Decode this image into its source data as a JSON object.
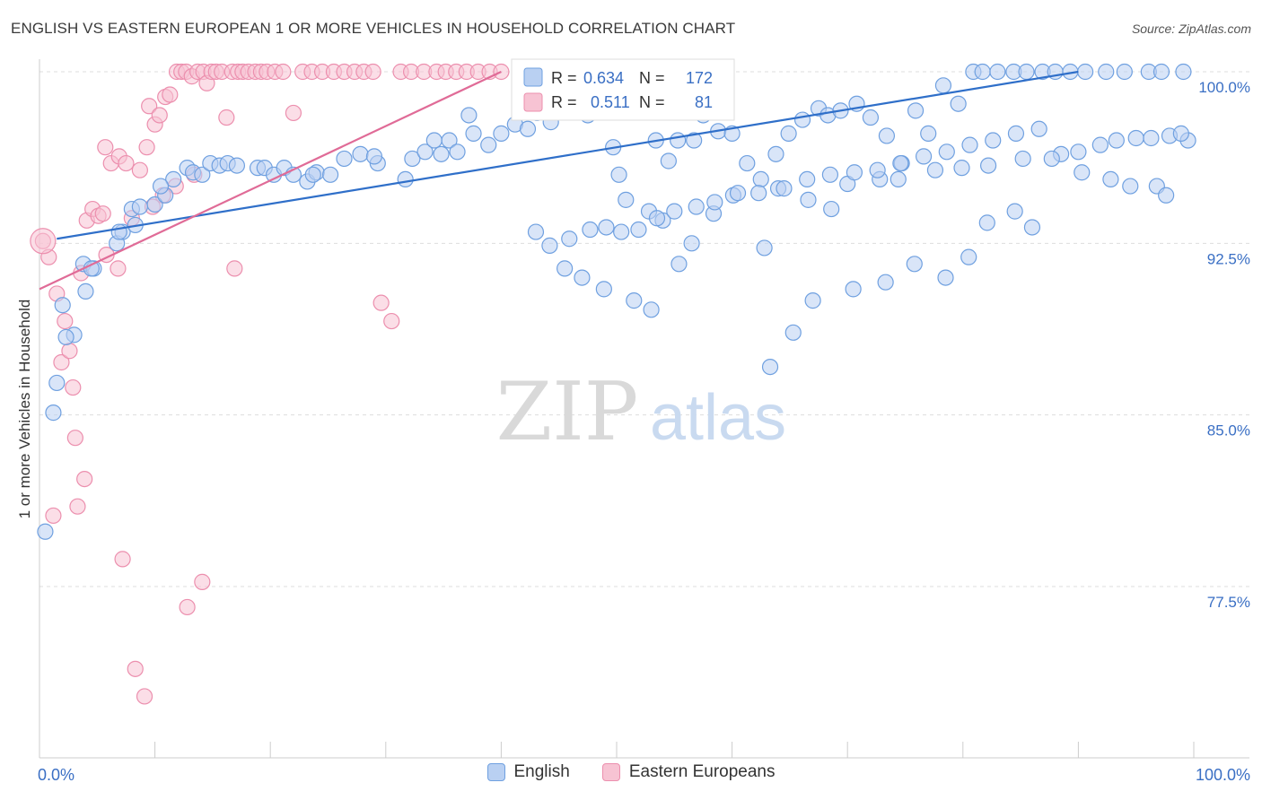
{
  "header": {
    "title": "ENGLISH VS EASTERN EUROPEAN 1 OR MORE VEHICLES IN HOUSEHOLD CORRELATION CHART",
    "source": "Source: ZipAtlas.com"
  },
  "watermark": {
    "zip": "ZIP",
    "atlas": "atlas"
  },
  "colors": {
    "english_fill": "#b9d0f2",
    "english_stroke": "#6fa0e0",
    "english_line": "#2f6fc9",
    "eastern_fill": "#f7c3d3",
    "eastern_stroke": "#ec8fae",
    "eastern_line": "#e06b97",
    "value_text": "#3a6fc4",
    "grid": "#dddddd"
  },
  "legend_box": {
    "r_label": "R =",
    "n_label": "N =",
    "english": {
      "r": "0.634",
      "n": "172"
    },
    "eastern": {
      "r": "0.511",
      "n": "81"
    }
  },
  "legend_bottom": {
    "english": "English",
    "eastern": "Eastern Europeans"
  },
  "chart_data": {
    "type": "scatter",
    "title": "ENGLISH VS EASTERN EUROPEAN 1 OR MORE VEHICLES IN HOUSEHOLD CORRELATION CHART",
    "xlabel": "",
    "ylabel": "1 or more Vehicles in Household",
    "xlim": [
      0,
      100
    ],
    "ylim": [
      71.0,
      101.0
    ],
    "x_tick_labels": [
      "0.0%",
      "100.0%"
    ],
    "y_ticks": [
      {
        "value": 100.0,
        "label": "100.0%"
      },
      {
        "value": 92.5,
        "label": "92.5%"
      },
      {
        "value": 85.0,
        "label": "85.0%"
      },
      {
        "value": 77.5,
        "label": "77.5%"
      }
    ],
    "grid": "horizontal dashed",
    "legend": "top-center and bottom",
    "series": [
      {
        "name": "English",
        "trend": {
          "x": [
            1.5,
            90
          ],
          "y": [
            92.7,
            100.0
          ]
        },
        "points": [
          [
            0.5,
            79.9
          ],
          [
            1.2,
            85.1
          ],
          [
            1.5,
            86.4
          ],
          [
            3.0,
            88.5
          ],
          [
            2.3,
            88.4
          ],
          [
            2.0,
            89.8
          ],
          [
            4.0,
            90.4
          ],
          [
            3.8,
            91.6
          ],
          [
            4.7,
            91.4
          ],
          [
            4.5,
            91.4
          ],
          [
            6.7,
            92.5
          ],
          [
            7.2,
            93.0
          ],
          [
            8.3,
            93.3
          ],
          [
            6.9,
            93.0
          ],
          [
            8.0,
            94.0
          ],
          [
            10.0,
            94.2
          ],
          [
            8.7,
            94.1
          ],
          [
            10.9,
            94.6
          ],
          [
            11.6,
            95.3
          ],
          [
            10.5,
            95.0
          ],
          [
            12.8,
            95.8
          ],
          [
            13.3,
            95.6
          ],
          [
            14.1,
            95.5
          ],
          [
            14.8,
            96.0
          ],
          [
            15.6,
            95.9
          ],
          [
            16.3,
            96.0
          ],
          [
            17.1,
            95.9
          ],
          [
            18.9,
            95.8
          ],
          [
            19.5,
            95.8
          ],
          [
            20.3,
            95.5
          ],
          [
            21.2,
            95.8
          ],
          [
            22.0,
            95.5
          ],
          [
            23.2,
            95.2
          ],
          [
            24.0,
            95.6
          ],
          [
            23.7,
            95.5
          ],
          [
            25.2,
            95.5
          ],
          [
            26.4,
            96.2
          ],
          [
            27.8,
            96.4
          ],
          [
            29.3,
            96.0
          ],
          [
            29.0,
            96.3
          ],
          [
            31.7,
            95.3
          ],
          [
            32.3,
            96.2
          ],
          [
            33.4,
            96.5
          ],
          [
            34.2,
            97.0
          ],
          [
            34.8,
            96.4
          ],
          [
            35.5,
            97.0
          ],
          [
            36.2,
            96.5
          ],
          [
            37.6,
            97.3
          ],
          [
            37.2,
            98.1
          ],
          [
            38.9,
            96.8
          ],
          [
            40.0,
            97.3
          ],
          [
            41.2,
            97.7
          ],
          [
            42.3,
            97.5
          ],
          [
            43.1,
            98.2
          ],
          [
            44.3,
            97.8
          ],
          [
            46.1,
            98.6
          ],
          [
            47.5,
            98.1
          ],
          [
            48.4,
            99.2
          ],
          [
            49.7,
            96.7
          ],
          [
            50.2,
            95.5
          ],
          [
            52.1,
            98.9
          ],
          [
            53.4,
            97.0
          ],
          [
            54.5,
            96.1
          ],
          [
            55.3,
            97.0
          ],
          [
            56.7,
            97.0
          ],
          [
            57.5,
            98.1
          ],
          [
            58.8,
            97.4
          ],
          [
            60.0,
            97.3
          ],
          [
            61.3,
            96.0
          ],
          [
            62.5,
            95.3
          ],
          [
            63.8,
            96.4
          ],
          [
            64.9,
            97.3
          ],
          [
            66.1,
            97.9
          ],
          [
            67.5,
            98.4
          ],
          [
            68.3,
            98.1
          ],
          [
            69.4,
            98.3
          ],
          [
            70.8,
            98.6
          ],
          [
            72.0,
            98.0
          ],
          [
            73.4,
            97.2
          ],
          [
            74.7,
            96.0
          ],
          [
            75.9,
            98.3
          ],
          [
            77.0,
            97.3
          ],
          [
            78.3,
            99.4
          ],
          [
            79.6,
            98.6
          ],
          [
            80.9,
            100.0
          ],
          [
            81.7,
            100.0
          ],
          [
            83.0,
            100.0
          ],
          [
            84.4,
            100.0
          ],
          [
            85.5,
            100.0
          ],
          [
            86.9,
            100.0
          ],
          [
            88.0,
            100.0
          ],
          [
            89.3,
            100.0
          ],
          [
            90.6,
            100.0
          ],
          [
            92.4,
            100.0
          ],
          [
            94.0,
            100.0
          ],
          [
            96.1,
            100.0
          ],
          [
            97.2,
            100.0
          ],
          [
            99.1,
            100.0
          ],
          [
            99.5,
            97.0
          ],
          [
            68.6,
            94.0
          ],
          [
            62.8,
            92.3
          ],
          [
            58.4,
            93.8
          ],
          [
            56.5,
            92.5
          ],
          [
            55.4,
            91.6
          ],
          [
            63.3,
            87.1
          ],
          [
            65.3,
            88.6
          ],
          [
            67.0,
            90.0
          ],
          [
            70.5,
            90.5
          ],
          [
            73.3,
            90.8
          ],
          [
            75.8,
            91.6
          ],
          [
            78.5,
            91.0
          ],
          [
            80.5,
            91.9
          ],
          [
            82.1,
            93.4
          ],
          [
            84.5,
            93.9
          ],
          [
            86.0,
            93.2
          ],
          [
            88.5,
            96.4
          ],
          [
            90.3,
            95.6
          ],
          [
            92.8,
            95.3
          ],
          [
            94.5,
            95.0
          ],
          [
            96.8,
            95.0
          ],
          [
            97.6,
            94.6
          ],
          [
            60.1,
            94.6
          ],
          [
            64.0,
            94.9
          ],
          [
            66.6,
            94.4
          ],
          [
            70.0,
            95.1
          ],
          [
            72.8,
            95.3
          ],
          [
            74.4,
            95.3
          ],
          [
            77.6,
            95.7
          ],
          [
            79.9,
            95.8
          ],
          [
            82.2,
            95.9
          ],
          [
            85.2,
            96.2
          ],
          [
            87.7,
            96.2
          ],
          [
            90.0,
            96.5
          ],
          [
            91.9,
            96.8
          ],
          [
            93.3,
            97.0
          ],
          [
            95.0,
            97.1
          ],
          [
            96.3,
            97.1
          ],
          [
            97.9,
            97.2
          ],
          [
            98.9,
            97.3
          ],
          [
            50.8,
            94.4
          ],
          [
            52.8,
            93.9
          ],
          [
            54.0,
            93.5
          ],
          [
            45.5,
            91.4
          ],
          [
            47.0,
            91.0
          ],
          [
            48.9,
            90.5
          ],
          [
            51.5,
            90.0
          ],
          [
            53.0,
            89.6
          ],
          [
            43.0,
            93.0
          ],
          [
            44.2,
            92.4
          ],
          [
            45.9,
            92.7
          ],
          [
            47.7,
            93.1
          ],
          [
            49.1,
            93.2
          ],
          [
            50.4,
            93.0
          ],
          [
            51.9,
            93.1
          ],
          [
            53.5,
            93.6
          ],
          [
            55.0,
            93.9
          ],
          [
            56.9,
            94.1
          ],
          [
            58.5,
            94.3
          ],
          [
            60.5,
            94.7
          ],
          [
            62.3,
            94.7
          ],
          [
            64.5,
            94.9
          ],
          [
            66.5,
            95.3
          ],
          [
            68.5,
            95.5
          ],
          [
            70.6,
            95.6
          ],
          [
            72.6,
            95.7
          ],
          [
            74.6,
            96.0
          ],
          [
            76.6,
            96.3
          ],
          [
            78.6,
            96.5
          ],
          [
            80.6,
            96.8
          ],
          [
            82.6,
            97.0
          ],
          [
            84.6,
            97.3
          ],
          [
            86.6,
            97.5
          ]
        ]
      },
      {
        "name": "Eastern Europeans",
        "trend": {
          "x": [
            0,
            40
          ],
          "y": [
            90.5,
            100.0
          ]
        },
        "points": [
          [
            0.3,
            92.6
          ],
          [
            0.8,
            91.9
          ],
          [
            1.2,
            80.6
          ],
          [
            1.5,
            90.3
          ],
          [
            1.9,
            87.3
          ],
          [
            2.2,
            89.1
          ],
          [
            2.6,
            87.8
          ],
          [
            2.9,
            86.2
          ],
          [
            3.1,
            84.0
          ],
          [
            3.3,
            81.0
          ],
          [
            3.6,
            91.2
          ],
          [
            4.1,
            93.5
          ],
          [
            4.6,
            94.0
          ],
          [
            5.1,
            93.7
          ],
          [
            3.9,
            82.2
          ],
          [
            5.5,
            93.8
          ],
          [
            5.7,
            96.7
          ],
          [
            6.2,
            96.0
          ],
          [
            6.9,
            96.3
          ],
          [
            7.5,
            96.0
          ],
          [
            8.0,
            93.6
          ],
          [
            8.7,
            95.7
          ],
          [
            9.3,
            96.7
          ],
          [
            9.5,
            98.5
          ],
          [
            10.0,
            97.7
          ],
          [
            10.4,
            98.1
          ],
          [
            10.9,
            98.9
          ],
          [
            11.3,
            99.0
          ],
          [
            11.9,
            100.0
          ],
          [
            12.3,
            100.0
          ],
          [
            12.7,
            100.0
          ],
          [
            13.2,
            99.8
          ],
          [
            13.7,
            100.0
          ],
          [
            14.2,
            100.0
          ],
          [
            14.5,
            99.5
          ],
          [
            14.9,
            100.0
          ],
          [
            15.3,
            100.0
          ],
          [
            15.8,
            100.0
          ],
          [
            16.2,
            98.0
          ],
          [
            16.7,
            100.0
          ],
          [
            17.2,
            100.0
          ],
          [
            17.6,
            100.0
          ],
          [
            18.1,
            100.0
          ],
          [
            18.7,
            100.0
          ],
          [
            19.2,
            100.0
          ],
          [
            19.7,
            100.0
          ],
          [
            20.4,
            100.0
          ],
          [
            21.1,
            100.0
          ],
          [
            22.0,
            98.2
          ],
          [
            22.8,
            100.0
          ],
          [
            23.6,
            100.0
          ],
          [
            24.5,
            100.0
          ],
          [
            25.5,
            100.0
          ],
          [
            26.4,
            100.0
          ],
          [
            27.3,
            100.0
          ],
          [
            28.1,
            100.0
          ],
          [
            28.9,
            100.0
          ],
          [
            29.6,
            89.9
          ],
          [
            30.5,
            89.1
          ],
          [
            31.3,
            100.0
          ],
          [
            32.2,
            100.0
          ],
          [
            33.3,
            100.0
          ],
          [
            34.4,
            100.0
          ],
          [
            35.2,
            100.0
          ],
          [
            36.1,
            100.0
          ],
          [
            37.0,
            100.0
          ],
          [
            38.0,
            100.0
          ],
          [
            39.0,
            100.0
          ],
          [
            40.0,
            100.0
          ],
          [
            6.8,
            91.4
          ],
          [
            5.8,
            92.0
          ],
          [
            7.2,
            78.7
          ],
          [
            12.8,
            76.6
          ],
          [
            14.1,
            77.7
          ],
          [
            8.3,
            73.9
          ],
          [
            9.1,
            72.7
          ],
          [
            9.8,
            94.1
          ],
          [
            10.7,
            94.6
          ],
          [
            11.8,
            95.0
          ],
          [
            13.4,
            95.5
          ],
          [
            16.9,
            91.4
          ]
        ]
      }
    ]
  }
}
